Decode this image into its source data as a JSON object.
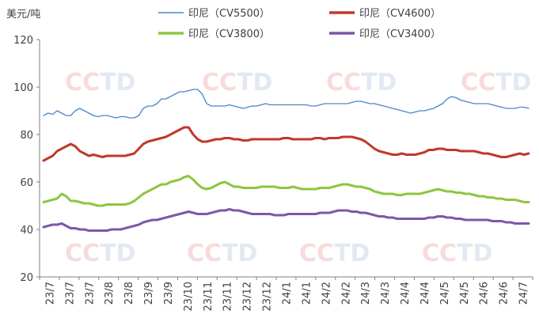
{
  "chart_data": {
    "type": "line",
    "ylabel": "美元/吨",
    "ylim": [
      20,
      120
    ],
    "yticks": [
      20,
      40,
      60,
      80,
      100,
      120
    ],
    "grid": false,
    "legend_position": "top",
    "x_tick_labels": [
      "23/7",
      "23/7",
      "23/7",
      "23/8",
      "23/8",
      "23/9",
      "23/9",
      "23/10",
      "23/11",
      "23/11",
      "23/12",
      "23/12",
      "24/1",
      "24/1",
      "24/2",
      "24/2",
      "24/3",
      "24/3",
      "24/4",
      "24/4",
      "24/5",
      "24/5",
      "24/6",
      "24/6",
      "24/7"
    ],
    "watermark": "CCTD",
    "series": [
      {
        "name": "印尼（CV5500）",
        "color": "#4a86c8",
        "width": 1.3,
        "values": [
          88,
          89,
          88.5,
          90,
          89,
          88,
          88,
          90,
          91,
          90,
          89,
          88,
          87.5,
          88,
          88,
          87.5,
          87,
          87.5,
          87.5,
          87,
          87,
          88,
          91,
          92,
          92,
          93,
          95,
          95,
          96,
          97,
          98,
          98,
          98.5,
          99,
          99,
          97,
          93,
          92,
          92,
          92,
          92,
          92.5,
          92,
          91.5,
          91,
          91.5,
          92,
          92,
          92.5,
          93,
          92.5,
          92.5,
          92.5,
          92.5,
          92.5,
          92.5,
          92.5,
          92.5,
          92.5,
          92,
          92,
          92.5,
          93,
          93,
          93,
          93,
          93,
          93,
          93.5,
          94,
          94,
          93.5,
          93,
          93,
          92.5,
          92,
          91.5,
          91,
          90.5,
          90,
          89.5,
          89,
          89.5,
          90,
          90,
          90.5,
          91,
          92,
          93,
          95,
          96,
          95.5,
          94.5,
          94,
          93.5,
          93,
          93,
          93,
          93,
          92.5,
          92,
          91.5,
          91,
          91,
          91,
          91.5,
          91.5,
          91
        ]
      },
      {
        "name": "印尼（CV4600）",
        "color": "#c0392b",
        "width": 3,
        "values": [
          69,
          70,
          71,
          73,
          74,
          75,
          76,
          75,
          73,
          72,
          71,
          71.5,
          71,
          70.5,
          71,
          71,
          71,
          71,
          71,
          71.5,
          72,
          74,
          76,
          77,
          77.5,
          78,
          78.5,
          79,
          80,
          81,
          82,
          83,
          83,
          80,
          78,
          77,
          77,
          77.5,
          78,
          78,
          78.5,
          78.5,
          78,
          78,
          77.5,
          77.5,
          78,
          78,
          78,
          78,
          78,
          78,
          78,
          78.5,
          78.5,
          78,
          78,
          78,
          78,
          78,
          78.5,
          78.5,
          78,
          78.5,
          78.5,
          78.5,
          79,
          79,
          79,
          78.5,
          78,
          77,
          75.5,
          74,
          73,
          72.5,
          72,
          71.5,
          71.5,
          72,
          71.5,
          71.5,
          71.5,
          72,
          72.5,
          73.5,
          73.5,
          74,
          74,
          73.5,
          73.5,
          73.5,
          73,
          73,
          73,
          73,
          72.5,
          72,
          72,
          71.5,
          71,
          70.5,
          70.5,
          71,
          71.5,
          72,
          71.5,
          72
        ]
      },
      {
        "name": "印尼（CV3800）",
        "color": "#8dc63f",
        "width": 3,
        "values": [
          51.5,
          52,
          52.5,
          53,
          55,
          54,
          52,
          52,
          51.5,
          51,
          51,
          50.5,
          50,
          50,
          50.5,
          50.5,
          50.5,
          50.5,
          50.5,
          51,
          52,
          53.5,
          55,
          56,
          57,
          58,
          59,
          59,
          60,
          60.5,
          61,
          62,
          62.5,
          61,
          59,
          57.5,
          57,
          57.5,
          58.5,
          59.5,
          60,
          59,
          58,
          58,
          57.5,
          57.5,
          57.5,
          57.5,
          58,
          58,
          58,
          58,
          57.5,
          57.5,
          57.5,
          58,
          57.5,
          57,
          57,
          57,
          57,
          57.5,
          57.5,
          57.5,
          58,
          58.5,
          59,
          59,
          58.5,
          58,
          58,
          57.5,
          57,
          56,
          55.5,
          55,
          55,
          55,
          54.5,
          54.5,
          55,
          55,
          55,
          55,
          55.5,
          56,
          56.5,
          57,
          56.5,
          56,
          56,
          55.5,
          55.5,
          55,
          55,
          54.5,
          54,
          54,
          53.5,
          53.5,
          53,
          53,
          52.5,
          52.5,
          52.5,
          52,
          51.5,
          51.5
        ]
      },
      {
        "name": "印尼（CV3400）",
        "color": "#7e57a8",
        "width": 3,
        "values": [
          41,
          41.5,
          42,
          42,
          42.5,
          41.5,
          40.5,
          40.5,
          40,
          40,
          39.5,
          39.5,
          39.5,
          39.5,
          39.5,
          40,
          40,
          40,
          40.5,
          41,
          41.5,
          42,
          43,
          43.5,
          44,
          44,
          44.5,
          45,
          45.5,
          46,
          46.5,
          47,
          47.5,
          47,
          46.5,
          46.5,
          46.5,
          47,
          47.5,
          48,
          48,
          48.5,
          48,
          48,
          47.5,
          47,
          46.5,
          46.5,
          46.5,
          46.5,
          46.5,
          46,
          46,
          46,
          46.5,
          46.5,
          46.5,
          46.5,
          46.5,
          46.5,
          46.5,
          47,
          47,
          47,
          47.5,
          48,
          48,
          48,
          47.5,
          47.5,
          47,
          47,
          46.5,
          46,
          45.5,
          45.5,
          45,
          45,
          44.5,
          44.5,
          44.5,
          44.5,
          44.5,
          44.5,
          44.5,
          45,
          45,
          45.5,
          45.5,
          45,
          45,
          44.5,
          44.5,
          44,
          44,
          44,
          44,
          44,
          44,
          43.5,
          43.5,
          43.5,
          43,
          43,
          42.5,
          42.5,
          42.5,
          42.5
        ]
      }
    ]
  }
}
